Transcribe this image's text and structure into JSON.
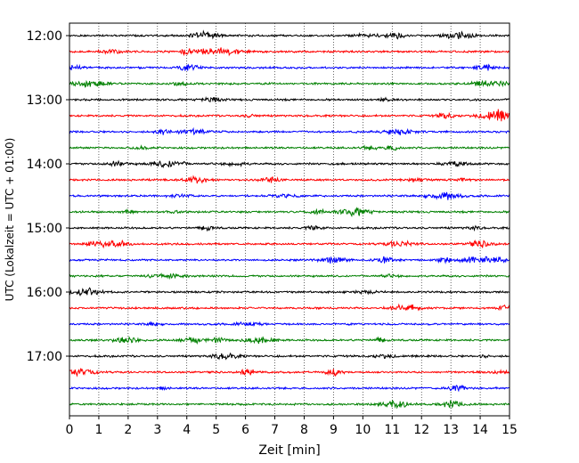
{
  "chart_data": {
    "type": "line",
    "title": "",
    "xlabel": "Zeit  [min]",
    "ylabel": "UTC (Lokalzeit = UTC + 01:00)",
    "xlim": [
      0,
      15
    ],
    "x_ticks": [
      0,
      1,
      2,
      3,
      4,
      5,
      6,
      7,
      8,
      9,
      10,
      11,
      12,
      13,
      14,
      15
    ],
    "y_tick_labels": [
      "12:00",
      "13:00",
      "14:00",
      "15:00",
      "16:00",
      "17:00"
    ],
    "trace_interval_minutes": 15,
    "grid": "vertical dotted at each minute",
    "trace_colors": [
      "#000000",
      "#ff0000",
      "#0000ff",
      "#008000"
    ],
    "traces": [
      "12:00",
      "12:15",
      "12:30",
      "12:45",
      "13:00",
      "13:15",
      "13:30",
      "13:45",
      "14:00",
      "14:15",
      "14:30",
      "14:45",
      "15:00",
      "15:15",
      "15:30",
      "15:45",
      "16:00",
      "16:15",
      "16:30",
      "16:45",
      "17:00",
      "17:15",
      "17:30",
      "17:45"
    ]
  }
}
